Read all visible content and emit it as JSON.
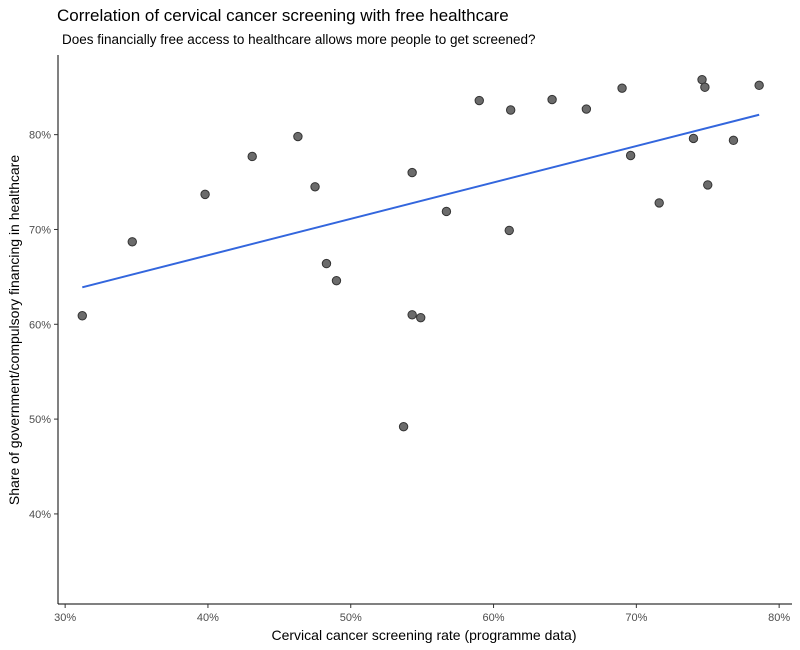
{
  "chart_data": {
    "type": "scatter",
    "title": "Correlation of cervical cancer screening with free healthcare",
    "subtitle": "Does financially free access to healthcare allows more people to get screened?",
    "xlabel": "Cervical cancer screening rate (programme data)",
    "ylabel": "Share of government/compulsory financing in healthcare",
    "xlim": [
      29.5,
      80.9
    ],
    "ylim": [
      30.5,
      88.4
    ],
    "x_ticks": [
      30,
      40,
      50,
      60,
      70,
      80
    ],
    "x_tick_labels": [
      "30%",
      "40%",
      "50%",
      "60%",
      "70%",
      "80%"
    ],
    "y_ticks": [
      40,
      50,
      60,
      70,
      80
    ],
    "y_tick_labels": [
      "40%",
      "50%",
      "60%",
      "70%",
      "80%"
    ],
    "grid": false,
    "points": [
      {
        "x": 31.2,
        "y": 60.9
      },
      {
        "x": 34.7,
        "y": 68.7
      },
      {
        "x": 39.8,
        "y": 73.7
      },
      {
        "x": 43.1,
        "y": 77.7
      },
      {
        "x": 46.3,
        "y": 79.8
      },
      {
        "x": 47.5,
        "y": 74.5
      },
      {
        "x": 48.3,
        "y": 66.4
      },
      {
        "x": 49.0,
        "y": 64.6
      },
      {
        "x": 53.7,
        "y": 49.2
      },
      {
        "x": 54.3,
        "y": 76.0
      },
      {
        "x": 54.3,
        "y": 61.0
      },
      {
        "x": 54.9,
        "y": 60.7
      },
      {
        "x": 56.7,
        "y": 71.9
      },
      {
        "x": 59.0,
        "y": 83.6
      },
      {
        "x": 61.1,
        "y": 69.9
      },
      {
        "x": 61.2,
        "y": 82.6
      },
      {
        "x": 64.1,
        "y": 83.7
      },
      {
        "x": 66.5,
        "y": 82.7
      },
      {
        "x": 69.0,
        "y": 84.9
      },
      {
        "x": 69.6,
        "y": 77.8
      },
      {
        "x": 71.6,
        "y": 72.8
      },
      {
        "x": 74.0,
        "y": 79.6
      },
      {
        "x": 74.6,
        "y": 85.8
      },
      {
        "x": 74.8,
        "y": 85.0
      },
      {
        "x": 75.0,
        "y": 74.7
      },
      {
        "x": 76.8,
        "y": 79.4
      },
      {
        "x": 78.6,
        "y": 85.2
      }
    ],
    "trend_line": {
      "x": [
        31.2,
        78.6
      ],
      "y": [
        63.9,
        82.1
      ]
    },
    "colors": {
      "point_fill": "#6b6b6b",
      "point_stroke": "#333333",
      "trend": "#3366dd",
      "axis": "#000000"
    }
  }
}
